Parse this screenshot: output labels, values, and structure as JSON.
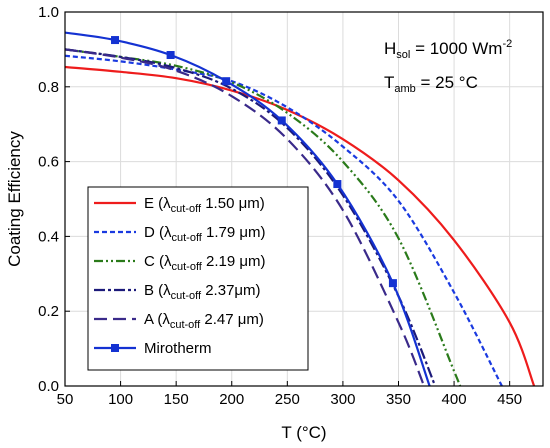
{
  "chart_data": {
    "type": "line",
    "xlabel": "T (°C)",
    "ylabel": "Coating Efficiency",
    "xlim": [
      50,
      480
    ],
    "ylim": [
      0.0,
      1.0
    ],
    "x_ticks": [
      50,
      100,
      150,
      200,
      250,
      300,
      350,
      400,
      450
    ],
    "x_tick_labels": [
      "50",
      "100",
      "150",
      "200",
      "250",
      "300",
      "350",
      "400",
      "450"
    ],
    "y_ticks": [
      0.0,
      0.2,
      0.4,
      0.6,
      0.8,
      1.0
    ],
    "y_tick_labels": [
      "0.0",
      "0.2",
      "0.4",
      "0.6",
      "0.8",
      "1.0"
    ],
    "grid": true,
    "legend_position": "bottom-left",
    "annotations": {
      "hsol": {
        "main": "H",
        "sub": "sol",
        "rest": " = 1000 Wm",
        "sup": "-2"
      },
      "tamb": {
        "main": "T",
        "sub": "amb",
        "rest": " = 25 °C"
      }
    },
    "series": [
      {
        "name": "E (λcut-off 1.50 μm)",
        "legend": {
          "pre": "E (λ",
          "sub": "cut-off",
          "post": " 1.50 μm)"
        },
        "color": "#ee1c1c",
        "style": "solid",
        "x": [
          50,
          100,
          150,
          200,
          250,
          300,
          350,
          400,
          450,
          472
        ],
        "y": [
          0.853,
          0.84,
          0.823,
          0.79,
          0.738,
          0.66,
          0.55,
          0.39,
          0.17,
          0.0
        ]
      },
      {
        "name": "D (λcut-off 1.79 μm)",
        "legend": {
          "pre": "D (λ",
          "sub": "cut-off",
          "post": " 1.79 μm)"
        },
        "color": "#1a3ae0",
        "style": "short-dash",
        "x": [
          50,
          100,
          150,
          200,
          250,
          300,
          350,
          400,
          443
        ],
        "y": [
          0.883,
          0.868,
          0.846,
          0.815,
          0.745,
          0.64,
          0.495,
          0.25,
          0.0
        ]
      },
      {
        "name": "C (λcut-off 2.19 μm)",
        "legend": {
          "pre": "C (λ",
          "sub": "cut-off",
          "post": " 2.19 μm)"
        },
        "color": "#2a7a1a",
        "style": "dash-dot-dot",
        "x": [
          50,
          100,
          150,
          200,
          250,
          300,
          350,
          400,
          405
        ],
        "y": [
          0.9,
          0.88,
          0.856,
          0.812,
          0.73,
          0.6,
          0.395,
          0.04,
          0.0
        ]
      },
      {
        "name": "B (λcut-off 2.37μm)",
        "legend": {
          "pre": "B (λ",
          "sub": "cut-off",
          "post": " 2.37μm)"
        },
        "color": "#1c1a7a",
        "style": "dash-dot",
        "x": [
          50,
          100,
          150,
          200,
          250,
          300,
          350,
          383
        ],
        "y": [
          0.9,
          0.88,
          0.85,
          0.795,
          0.69,
          0.51,
          0.24,
          0.0
        ]
      },
      {
        "name": "A (λcut-off 2.47 μm)",
        "legend": {
          "pre": "A (λ",
          "sub": "cut-off",
          "post": " 2.47 μm)"
        },
        "color": "#3a2a8a",
        "style": "long-dash",
        "x": [
          50,
          100,
          150,
          200,
          250,
          300,
          350,
          373
        ],
        "y": [
          0.9,
          0.878,
          0.843,
          0.775,
          0.66,
          0.47,
          0.17,
          0.0
        ]
      },
      {
        "name": "Mirotherm",
        "legend": {
          "pre": "Mirotherm",
          "sub": "",
          "post": ""
        },
        "color": "#1432d2",
        "style": "solid",
        "marker": "square",
        "x": [
          50,
          95,
          145,
          195,
          245,
          295,
          345,
          378
        ],
        "y": [
          0.945,
          0.925,
          0.885,
          0.815,
          0.71,
          0.54,
          0.275,
          0.0
        ],
        "marker_x": [
          95,
          145,
          195,
          245,
          295,
          345
        ],
        "marker_y": [
          0.925,
          0.885,
          0.815,
          0.71,
          0.54,
          0.275
        ]
      }
    ]
  }
}
